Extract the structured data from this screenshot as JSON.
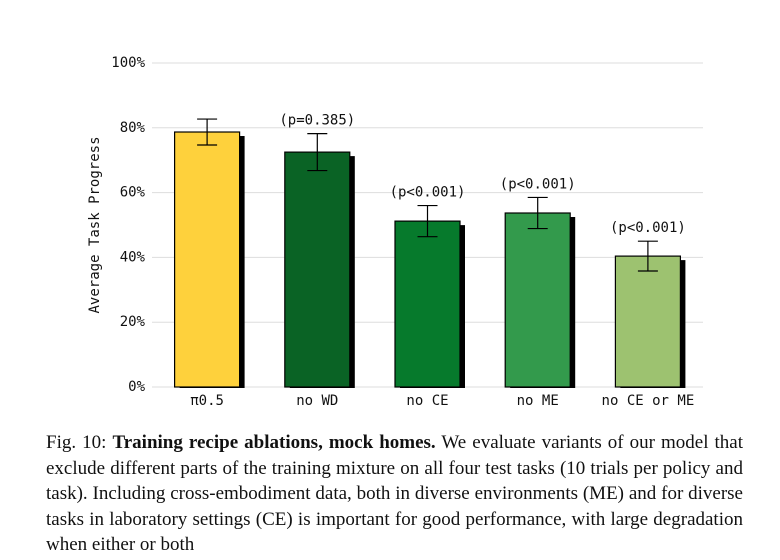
{
  "chart_data": {
    "type": "bar",
    "ylabel": "Average Task Progress",
    "categories": [
      "π0.5",
      "no WD",
      "no CE",
      "no ME",
      "no CE or ME"
    ],
    "values": [
      78.7,
      72.5,
      51.2,
      53.7,
      40.4
    ],
    "errors": [
      4,
      5.7,
      4.8,
      4.8,
      4.6
    ],
    "annotations": [
      null,
      "(p=0.385)",
      "(p<0.001)",
      "(p<0.001)",
      "(p<0.001)"
    ],
    "colors": [
      "#fed13c",
      "#0a6325",
      "#067a2c",
      "#339a4c",
      "#9dc270"
    ],
    "ylim": [
      0,
      100
    ],
    "yticks": [
      {
        "value": 0,
        "label": "0%"
      },
      {
        "value": 20,
        "label": "20%"
      },
      {
        "value": 40,
        "label": "40%"
      },
      {
        "value": 60,
        "label": "60%"
      },
      {
        "value": 80,
        "label": "80%"
      },
      {
        "value": 100,
        "label": "100%"
      }
    ],
    "grid": true
  },
  "caption": {
    "label": "Fig. 10:",
    "title": "Training recipe ablations, mock homes.",
    "text": "We evaluate variants of our model that exclude different parts of the training mixture on all four test tasks (10 trials per policy and task). Including cross-embodiment data, both in diverse environments (ME) and for diverse tasks in laboratory settings (CE) is important for good performance, with large degradation when either or both"
  }
}
